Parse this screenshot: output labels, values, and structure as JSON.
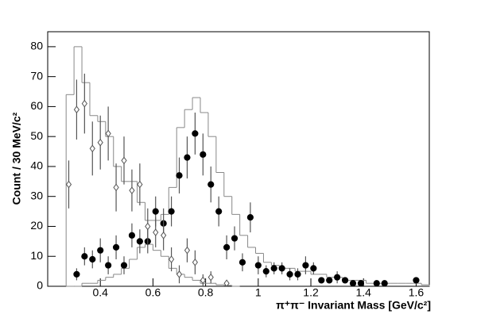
{
  "chart_data": {
    "type": "scatter",
    "x_label": "π⁺π⁻ Invariant Mass [GeV/c²]",
    "y_label": "Count / 30 MeV/c²",
    "xlim": [
      0.2,
      1.65
    ],
    "ylim": [
      0,
      85
    ],
    "xticks": [
      0.4,
      0.6,
      0.8,
      1,
      1.2,
      1.4,
      1.6
    ],
    "yticks": [
      0,
      10,
      20,
      30,
      40,
      50,
      60,
      70,
      80
    ],
    "histograms": [
      {
        "color": "#888888",
        "bins": [
          0.27,
          0.3,
          0.33,
          0.36,
          0.39,
          0.42,
          0.45,
          0.48,
          0.51,
          0.54,
          0.57,
          0.6,
          0.63,
          0.66,
          0.69,
          0.72,
          0.75,
          0.78,
          0.81,
          0.84,
          0.87,
          0.9,
          0.93,
          0.96,
          0.99,
          1.02,
          1.05,
          1.08,
          1.11,
          1.14,
          1.17,
          1.2,
          1.23,
          1.26,
          1.29,
          1.32,
          1.35,
          1.38,
          1.41,
          1.44,
          1.47,
          1.5,
          1.53,
          1.56,
          1.59,
          1.62,
          1.65
        ],
        "counts": [
          64,
          80,
          68,
          57,
          55,
          50,
          40,
          35,
          35,
          28,
          22,
          22,
          24,
          33,
          53,
          59,
          63,
          58,
          50,
          38,
          30,
          24,
          17,
          13,
          11,
          8,
          7,
          6,
          6,
          5,
          5,
          4,
          4,
          3,
          3,
          2,
          2,
          2,
          1,
          1,
          1,
          1,
          1,
          1,
          1,
          0.5
        ]
      },
      {
        "color": "#888888",
        "bins": [
          0.27,
          0.3,
          0.33,
          0.36,
          0.39,
          0.42,
          0.45,
          0.48,
          0.51,
          0.54,
          0.57,
          0.6,
          0.63,
          0.66,
          0.69,
          0.72,
          0.75,
          0.78,
          0.81,
          0.84,
          0.87,
          0.9,
          0.93
        ],
        "counts": [
          0,
          0,
          1,
          1,
          2,
          3,
          4,
          6,
          9,
          13,
          14,
          12,
          10,
          6,
          4,
          3,
          2,
          1,
          1,
          0.5,
          0.3,
          0
        ]
      }
    ],
    "series": [
      {
        "marker": "circle",
        "color": "#000000",
        "fill": "#000000",
        "x": [
          0.31,
          0.34,
          0.37,
          0.4,
          0.43,
          0.46,
          0.49,
          0.52,
          0.55,
          0.58,
          0.61,
          0.64,
          0.67,
          0.7,
          0.73,
          0.76,
          0.79,
          0.82,
          0.85,
          0.88,
          0.91,
          0.94,
          0.97,
          1.0,
          1.03,
          1.06,
          1.09,
          1.12,
          1.15,
          1.18,
          1.21,
          1.24,
          1.27,
          1.3,
          1.33,
          1.36,
          1.39,
          1.45,
          1.48,
          1.6
        ],
        "values": [
          4,
          10,
          9,
          12,
          7,
          13,
          7,
          17,
          15,
          15,
          25,
          21,
          25,
          37,
          43,
          51,
          44,
          34,
          25,
          13,
          16,
          8,
          23,
          7,
          5,
          6,
          6,
          4,
          4,
          7,
          6,
          2,
          2,
          3,
          2,
          1,
          1,
          1,
          1,
          2
        ],
        "errors": [
          2,
          3,
          3,
          4,
          3,
          4,
          3,
          4,
          4,
          4,
          5,
          5,
          5,
          6,
          7,
          7,
          7,
          6,
          5,
          4,
          4,
          3,
          5,
          3,
          2,
          2,
          2,
          2,
          2,
          3,
          2,
          1,
          1,
          2,
          1,
          1,
          1,
          1,
          1,
          1
        ]
      },
      {
        "marker": "diamond",
        "color": "#555555",
        "fill": "#ffffff",
        "x": [
          0.28,
          0.31,
          0.34,
          0.37,
          0.4,
          0.43,
          0.46,
          0.49,
          0.52,
          0.55,
          0.58,
          0.61,
          0.64,
          0.67,
          0.7,
          0.73,
          0.76,
          0.79,
          0.82,
          0.88
        ],
        "values": [
          34,
          59,
          61,
          46,
          48,
          51,
          33,
          42,
          32,
          34,
          20,
          18,
          17,
          9,
          4,
          12,
          8,
          2,
          3,
          1
        ],
        "errors": [
          8,
          10,
          10,
          9,
          9,
          9,
          8,
          8,
          7,
          7,
          6,
          5,
          5,
          4,
          3,
          4,
          4,
          2,
          2,
          1
        ]
      }
    ]
  }
}
